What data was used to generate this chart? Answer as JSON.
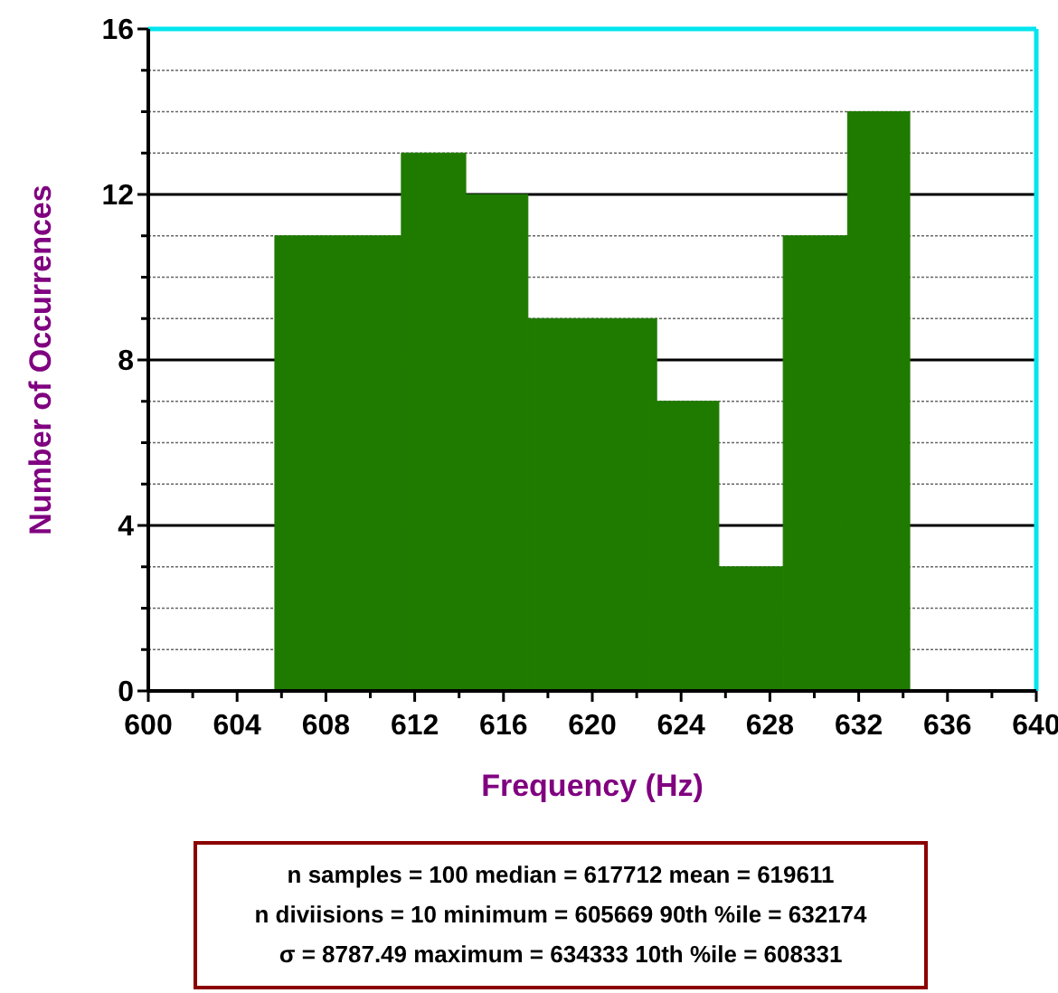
{
  "chart_data": {
    "type": "histogram",
    "xlabel": "Frequency (Hz)",
    "ylabel": "Number of Occurrences",
    "bins": [
      605.7,
      608.5,
      611.4,
      614.3,
      617.1,
      620.0,
      622.9,
      625.7,
      628.6,
      631.5,
      634.3
    ],
    "values": [
      11,
      11,
      13,
      12,
      9,
      9,
      7,
      3,
      11,
      14
    ],
    "color": "#1f7a00",
    "xlim": [
      600,
      640
    ],
    "xticks": [
      600,
      {
        "value": 602,
        "label": null
      },
      604,
      {
        "value": 606,
        "label": null
      },
      608,
      {
        "value": 610,
        "label": null
      },
      612,
      {
        "value": 614,
        "label": null
      },
      616,
      {
        "value": 618,
        "label": null
      },
      620,
      {
        "value": 622,
        "label": null
      },
      624,
      {
        "value": 626,
        "label": null
      },
      628,
      {
        "value": 630,
        "label": null
      },
      632,
      {
        "value": 634,
        "label": null
      },
      636,
      {
        "value": 638,
        "label": null
      },
      640
    ],
    "ylim": [
      0,
      16
    ],
    "yticks": [
      0,
      {
        "value": 1,
        "label": null
      },
      {
        "value": 2,
        "label": null
      },
      {
        "value": 3,
        "label": null
      },
      4,
      {
        "value": 5,
        "label": null
      },
      {
        "value": 6,
        "label": null
      },
      {
        "value": 7,
        "label": null
      },
      8,
      {
        "value": 9,
        "label": null
      },
      {
        "value": 10,
        "label": null
      },
      {
        "value": 11,
        "label": null
      },
      12,
      {
        "value": 13,
        "label": null
      },
      {
        "value": 14,
        "label": null
      },
      {
        "value": 15,
        "label": null
      },
      16
    ],
    "grid": "y",
    "annotations": [
      "n samples = 100 median = 617712  mean = 619611",
      "n diviisions = 10   minimum = 605669 90th %ile = 632174",
      "σ = 8787.49  maximum = 634333 10th %ile = 608331"
    ]
  }
}
